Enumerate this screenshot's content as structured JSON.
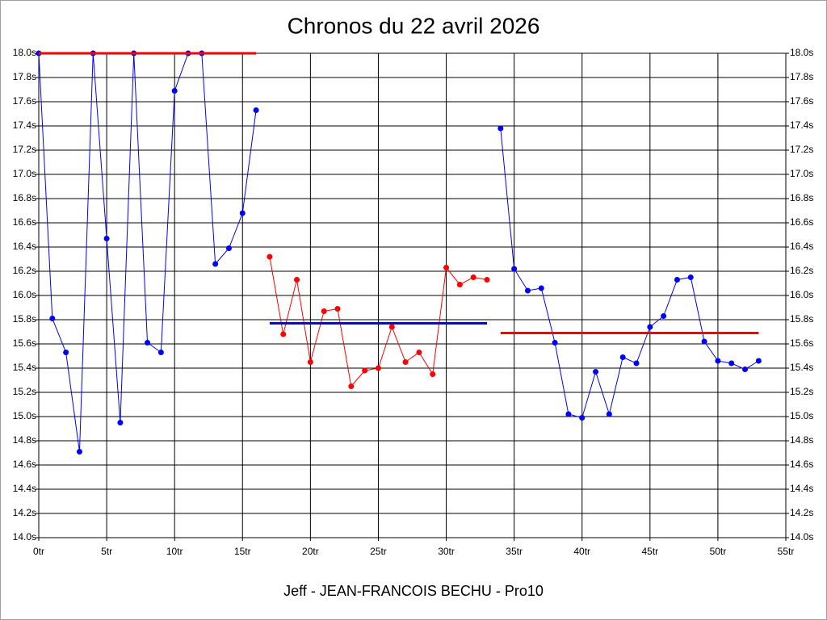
{
  "chart_data": {
    "type": "line",
    "title": "Chronos du 22 avril 2026",
    "x_label": "Jeff - JEAN-FRANCOIS BECHU - Pro10",
    "xlim": [
      0,
      55
    ],
    "xticks": [
      {
        "value": 0,
        "label": "0tr"
      },
      {
        "value": 5,
        "label": "5tr"
      },
      {
        "value": 10,
        "label": "10tr"
      },
      {
        "value": 15,
        "label": "15tr"
      },
      {
        "value": 20,
        "label": "20tr"
      },
      {
        "value": 25,
        "label": "25tr"
      },
      {
        "value": 30,
        "label": "30tr"
      },
      {
        "value": 35,
        "label": "35tr"
      },
      {
        "value": 40,
        "label": "40tr"
      },
      {
        "value": 45,
        "label": "45tr"
      },
      {
        "value": 50,
        "label": "50tr"
      },
      {
        "value": 55,
        "label": "55tr"
      }
    ],
    "ylim": [
      14.0,
      18.0
    ],
    "yticks": [
      {
        "value": 14.0,
        "label": "14.0s"
      },
      {
        "value": 14.2,
        "label": "14.2s"
      },
      {
        "value": 14.4,
        "label": "14.4s"
      },
      {
        "value": 14.6,
        "label": "14.6s"
      },
      {
        "value": 14.8,
        "label": "14.8s"
      },
      {
        "value": 15.0,
        "label": "15.0s"
      },
      {
        "value": 15.2,
        "label": "15.2s"
      },
      {
        "value": 15.4,
        "label": "15.4s"
      },
      {
        "value": 15.6,
        "label": "15.6s"
      },
      {
        "value": 15.8,
        "label": "15.8s"
      },
      {
        "value": 16.0,
        "label": "16.0s"
      },
      {
        "value": 16.2,
        "label": "16.2s"
      },
      {
        "value": 16.4,
        "label": "16.4s"
      },
      {
        "value": 16.6,
        "label": "16.6s"
      },
      {
        "value": 16.8,
        "label": "16.8s"
      },
      {
        "value": 17.0,
        "label": "17.0s"
      },
      {
        "value": 17.2,
        "label": "17.2s"
      },
      {
        "value": 17.4,
        "label": "17.4s"
      },
      {
        "value": 17.6,
        "label": "17.6s"
      },
      {
        "value": 17.8,
        "label": "17.8s"
      },
      {
        "value": 18.0,
        "label": "18.0s"
      }
    ],
    "grid": true,
    "series": [
      {
        "color": "#0000ff",
        "markers": true,
        "x": [
          0,
          1,
          2,
          3,
          4,
          5,
          6,
          7,
          8,
          9,
          10,
          11,
          12,
          13,
          14,
          15,
          16
        ],
        "values": [
          18.0,
          15.81,
          15.53,
          14.71,
          18.0,
          16.47,
          14.95,
          18.0,
          15.61,
          15.53,
          17.69,
          18.0,
          18.0,
          16.26,
          16.39,
          16.68,
          17.53
        ]
      },
      {
        "color": "#ff0000",
        "markers": true,
        "x": [
          17,
          18,
          19,
          20,
          21,
          22,
          23,
          24,
          25,
          26,
          27,
          28,
          29,
          30,
          31,
          32,
          33
        ],
        "values": [
          16.32,
          15.68,
          16.13,
          15.45,
          15.87,
          15.89,
          15.25,
          15.38,
          15.4,
          15.74,
          15.45,
          15.53,
          15.35,
          16.23,
          16.09,
          16.15,
          16.13
        ]
      },
      {
        "color": "#0000ff",
        "markers": true,
        "x": [
          34,
          35,
          36,
          37,
          38,
          39,
          40,
          41,
          42,
          43,
          44,
          45,
          46,
          47,
          48,
          49,
          50,
          51,
          52,
          53
        ],
        "values": [
          17.38,
          16.22,
          16.04,
          16.06,
          15.61,
          15.02,
          14.99,
          15.37,
          15.02,
          15.49,
          15.44,
          15.74,
          15.83,
          16.13,
          16.15,
          15.62,
          15.46,
          15.44,
          15.39,
          15.46
        ]
      },
      {
        "color": "#ff0000",
        "markers": false,
        "x": [
          0,
          16
        ],
        "values": [
          18.0,
          18.0
        ]
      },
      {
        "color": "#0000ff",
        "markers": false,
        "x": [
          17,
          33
        ],
        "values": [
          15.77,
          15.77
        ]
      },
      {
        "color": "#ff0000",
        "markers": false,
        "x": [
          34,
          53
        ],
        "values": [
          15.69,
          15.69
        ]
      }
    ]
  }
}
